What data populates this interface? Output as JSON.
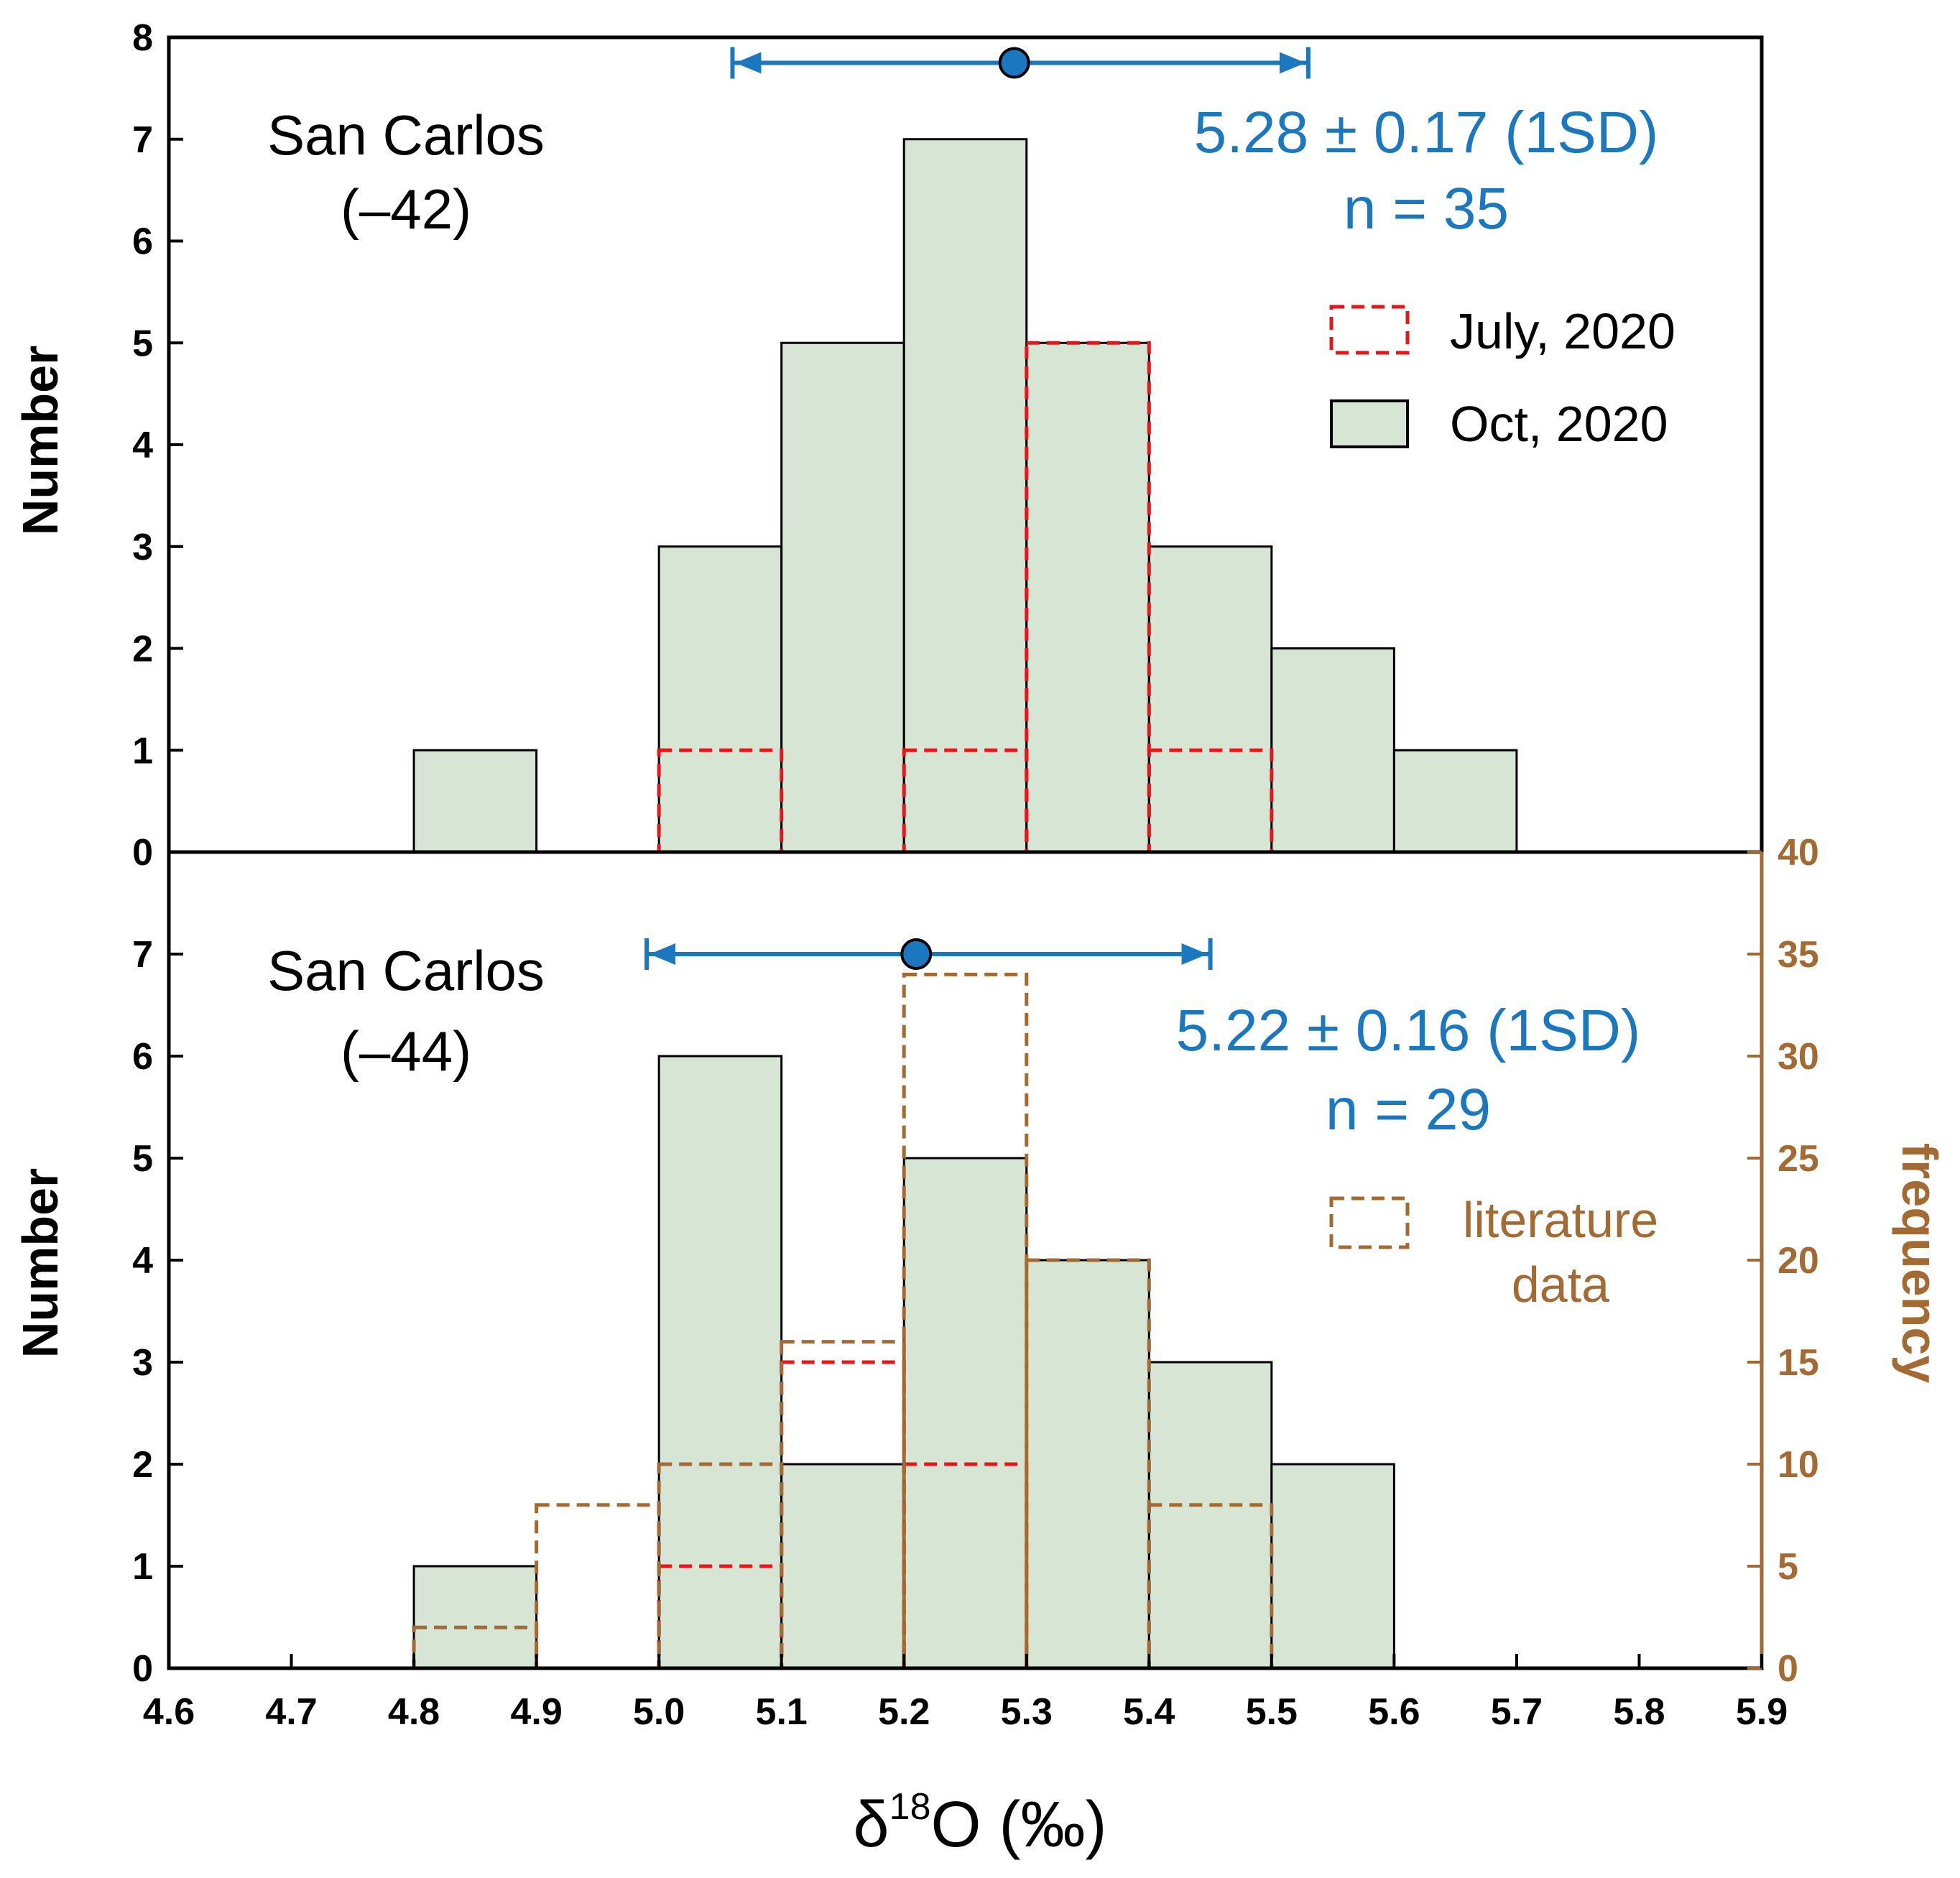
{
  "chart_data": [
    {
      "type": "bar",
      "panel": "top",
      "label_line1": "San Carlos",
      "label_line2": "(–42)",
      "stat_line1": "5.28 ± 0.17 (1SD)",
      "stat_line2": "n = 35",
      "ylabel": "Number",
      "ylim": [
        0,
        8
      ],
      "yticks": [
        "0",
        "1",
        "2",
        "3",
        "4",
        "5",
        "6",
        "7",
        "8"
      ],
      "bin_width": 0.1,
      "series": [
        {
          "name": "Oct, 2020",
          "bins": [
            4.8,
            5.0,
            5.1,
            5.2,
            5.3,
            5.4,
            5.5,
            5.6
          ],
          "values": [
            1,
            3,
            5,
            7,
            5,
            3,
            2,
            1
          ]
        },
        {
          "name": "July, 2020",
          "bins": [
            5.0,
            5.2,
            5.3,
            5.4
          ],
          "values": [
            1,
            1,
            5,
            1
          ]
        }
      ],
      "mean": 5.29,
      "errorbar": [
        5.06,
        5.53
      ],
      "errorbar_y": 7.75,
      "legend": [
        {
          "label": "July, 2020",
          "style": "red-dashed"
        },
        {
          "label": "Oct, 2020",
          "style": "green-fill"
        }
      ]
    },
    {
      "type": "bar",
      "panel": "bottom",
      "label_line1": "San Carlos",
      "label_line2": "(–44)",
      "stat_line1": "5.22 ± 0.16 (1SD)",
      "stat_line2": "n = 29",
      "ylabel": "Number",
      "ylabel_right": "frequency",
      "ylim": [
        0,
        8
      ],
      "yticks": [
        "0",
        "1",
        "2",
        "3",
        "4",
        "5",
        "6",
        "7"
      ],
      "ylim_right": [
        0,
        40
      ],
      "yticks_right": [
        "0",
        "5",
        "10",
        "15",
        "20",
        "25",
        "30",
        "35",
        "40"
      ],
      "bin_width": 0.1,
      "series": [
        {
          "name": "Oct, 2020",
          "bins": [
            4.8,
            5.0,
            5.1,
            5.2,
            5.3,
            5.4,
            5.5
          ],
          "values": [
            1,
            6,
            2,
            5,
            4,
            3,
            2
          ]
        },
        {
          "name": "July, 2020",
          "bins": [
            5.0,
            5.1,
            5.2
          ],
          "values": [
            1,
            3,
            2
          ]
        },
        {
          "name": "literature data",
          "axis": "right",
          "bins": [
            4.8,
            4.9,
            5.0,
            5.1,
            5.2,
            5.3,
            5.4
          ],
          "values": [
            2,
            8,
            10,
            16,
            34,
            20,
            8
          ]
        }
      ],
      "mean": 5.21,
      "errorbar": [
        4.99,
        5.45
      ],
      "errorbar_y": 7.0,
      "legend": [
        {
          "label_line1": "literature",
          "label_line2": "data",
          "style": "brown-dashed"
        }
      ]
    }
  ],
  "xaxis": {
    "xlim": [
      4.6,
      5.9
    ],
    "ticks": [
      "4.6",
      "4.7",
      "4.8",
      "4.9",
      "5.0",
      "5.1",
      "5.2",
      "5.3",
      "5.4",
      "5.5",
      "5.6",
      "5.7",
      "5.8",
      "5.9"
    ],
    "xlabel_delta": "δ",
    "xlabel_sup": "18",
    "xlabel_rest": "O (‰)"
  },
  "colors": {
    "oct_fill": "#D6E5D4",
    "july": "#E8151B",
    "literature": "#A36B33",
    "stat": "#1B78BE",
    "axis": "#000000"
  }
}
